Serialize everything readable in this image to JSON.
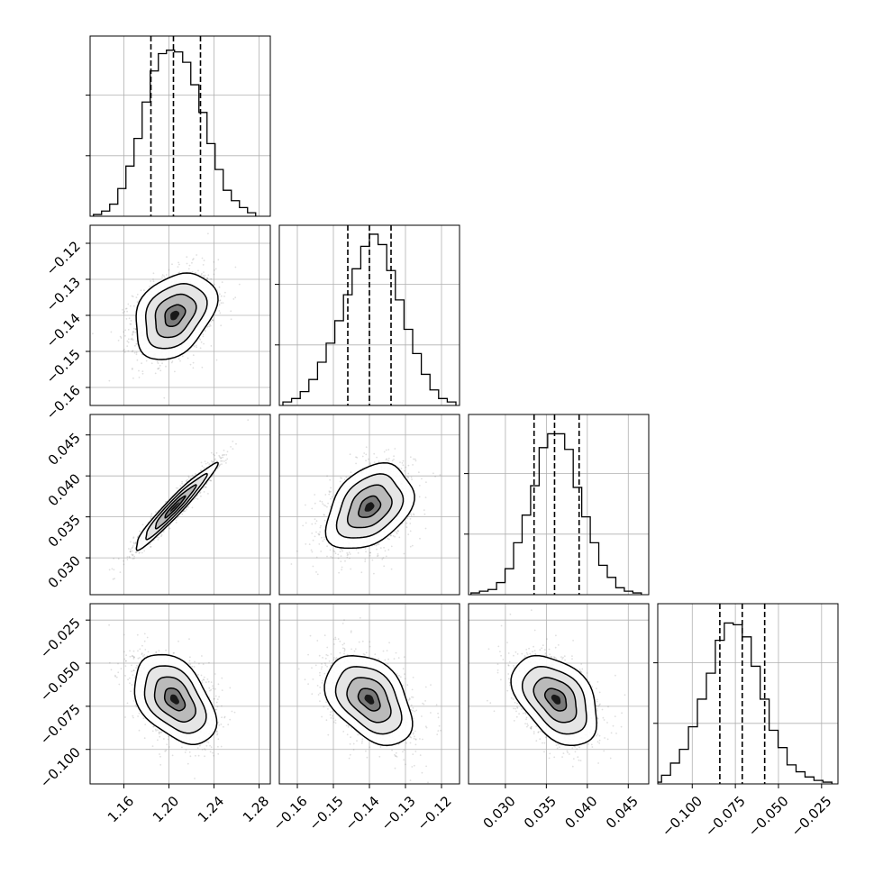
{
  "chart_data": {
    "type": "corner",
    "parameters": [
      {
        "range": [
          1.13,
          1.29
        ],
        "ticks": [
          1.16,
          1.2,
          1.24,
          1.28
        ],
        "tick_labels": [
          "1.16",
          "1.20",
          "1.24",
          "1.28"
        ],
        "quantiles": [
          1.184,
          1.204,
          1.228
        ],
        "mean": 1.205,
        "sd": 0.018
      },
      {
        "range": [
          -0.165,
          -0.115
        ],
        "ticks": [
          -0.16,
          -0.15,
          -0.14,
          -0.13,
          -0.12
        ],
        "tick_labels": [
          "−0.16",
          "−0.15",
          "−0.14",
          "−0.13",
          "−0.12"
        ],
        "quantiles": [
          -0.146,
          -0.14,
          -0.134
        ],
        "mean": -0.14,
        "sd": 0.006
      },
      {
        "range": [
          0.0255,
          0.0475
        ],
        "ticks": [
          0.03,
          0.035,
          0.04,
          0.045
        ],
        "tick_labels": [
          "0.030",
          "0.035",
          "0.040",
          "0.045"
        ],
        "quantiles": [
          0.0335,
          0.036,
          0.039
        ],
        "mean": 0.0362,
        "sd": 0.0026
      },
      {
        "range": [
          -0.12,
          -0.0155
        ],
        "ticks": [
          -0.1,
          -0.075,
          -0.05,
          -0.025
        ],
        "tick_labels": [
          "−0.100",
          "−0.075",
          "−0.050",
          "−0.025"
        ],
        "quantiles": [
          -0.084,
          -0.071,
          -0.058
        ],
        "mean": -0.071,
        "sd": 0.013
      }
    ],
    "histograms": [
      [
        0.01,
        0.03,
        0.07,
        0.16,
        0.29,
        0.45,
        0.66,
        0.84,
        0.94,
        0.96,
        0.95,
        0.89,
        0.76,
        0.6,
        0.42,
        0.27,
        0.15,
        0.09,
        0.05,
        0.02
      ],
      [
        0.02,
        0.04,
        0.08,
        0.15,
        0.25,
        0.36,
        0.49,
        0.64,
        0.79,
        0.92,
        0.99,
        0.93,
        0.78,
        0.61,
        0.44,
        0.3,
        0.18,
        0.09,
        0.04,
        0.02
      ],
      [
        0.01,
        0.02,
        0.03,
        0.07,
        0.15,
        0.3,
        0.46,
        0.63,
        0.85,
        0.93,
        0.93,
        0.84,
        0.62,
        0.45,
        0.3,
        0.17,
        0.1,
        0.04,
        0.02,
        0.01
      ],
      [
        0.01,
        0.05,
        0.12,
        0.2,
        0.33,
        0.49,
        0.64,
        0.83,
        0.93,
        0.92,
        0.85,
        0.68,
        0.49,
        0.31,
        0.21,
        0.11,
        0.07,
        0.04,
        0.02,
        0.01
      ]
    ],
    "correlations": {
      "1-0": 0.32,
      "2-0": 0.96,
      "2-1": 0.36,
      "3-0": -0.42,
      "3-1": -0.4,
      "3-2": -0.42
    },
    "contour_levels_sigma": [
      0.5,
      1.0,
      1.5,
      2.0
    ],
    "grid": true,
    "legend": "none"
  }
}
